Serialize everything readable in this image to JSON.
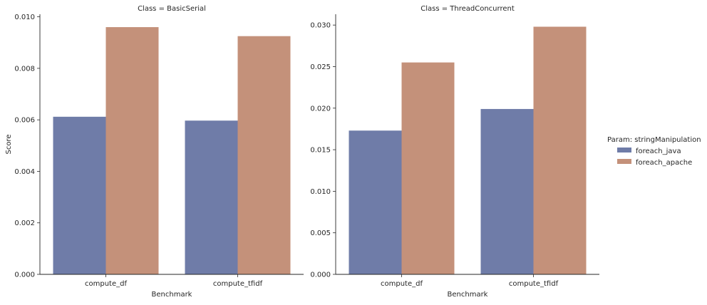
{
  "chart_data": [
    {
      "type": "bar",
      "title": "Class = BasicSerial",
      "xlabel": "Benchmark",
      "ylabel": "Score",
      "categories": [
        "compute_df",
        "compute_tfidf"
      ],
      "ylim": [
        0,
        0.0101
      ],
      "yticks": [
        "0.000",
        "0.002",
        "0.004",
        "0.006",
        "0.008",
        "0.010"
      ],
      "series": [
        {
          "name": "foreach_java",
          "values": [
            0.00612,
            0.00597
          ]
        },
        {
          "name": "foreach_apache",
          "values": [
            0.0096,
            0.00925
          ]
        }
      ]
    },
    {
      "type": "bar",
      "title": "Class = ThreadConcurrent",
      "xlabel": "Benchmark",
      "ylabel": "",
      "categories": [
        "compute_df",
        "compute_tfidf"
      ],
      "ylim": [
        0,
        0.0313
      ],
      "yticks": [
        "0.000",
        "0.005",
        "0.010",
        "0.015",
        "0.020",
        "0.025",
        "0.030"
      ],
      "series": [
        {
          "name": "foreach_java",
          "values": [
            0.0173,
            0.0199
          ]
        },
        {
          "name": "foreach_apache",
          "values": [
            0.0255,
            0.0298
          ]
        }
      ]
    }
  ],
  "legend": {
    "title": "Param: stringManipulation",
    "entries": [
      "foreach_java",
      "foreach_apache"
    ],
    "placement": "right"
  },
  "colors": {
    "foreach_java": "#6f7ca8",
    "foreach_apache": "#c4917a",
    "axis": "#262626"
  }
}
